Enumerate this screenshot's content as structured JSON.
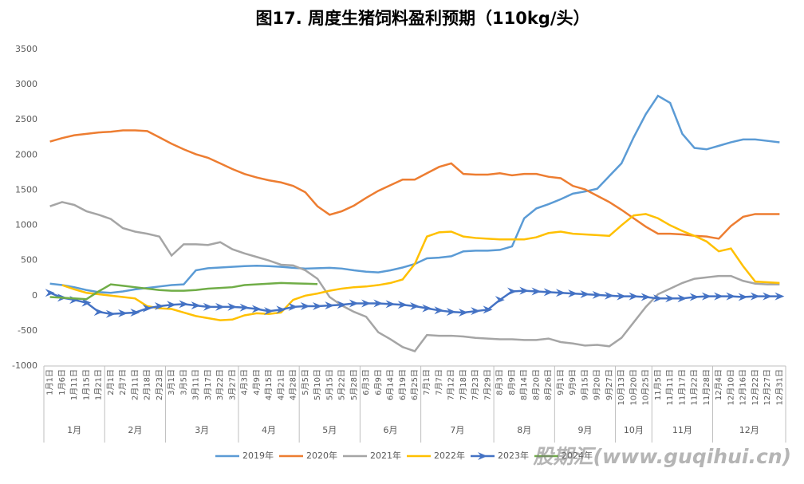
{
  "chart_data": {
    "type": "line",
    "title": "图17. 周度生猪饲料盈利预期（110kg/头）",
    "category_groups": [
      {
        "label": "1月",
        "categories": [
          "1月1日",
          "1月6日",
          "1月11日",
          "1月15日",
          "1月21日"
        ]
      },
      {
        "label": "2月",
        "categories": [
          "2月1日",
          "2月7日",
          "2月11日",
          "2月18日",
          "2月23日"
        ]
      },
      {
        "label": "3月",
        "categories": [
          "3月1日",
          "3月5日",
          "3月11日",
          "3月17日",
          "3月22日",
          "3月27日"
        ]
      },
      {
        "label": "4月",
        "categories": [
          "4月3日",
          "4月9日",
          "4月15日",
          "4月21日",
          "4月28日"
        ]
      },
      {
        "label": "5月",
        "categories": [
          "5月5日",
          "5月10日",
          "5月15日",
          "5月22日",
          "5月28日"
        ]
      },
      {
        "label": "6月",
        "categories": [
          "6月3日",
          "6月9日",
          "6月14日",
          "6月19日",
          "6月25日"
        ]
      },
      {
        "label": "7月",
        "categories": [
          "7月1日",
          "7月7日",
          "7月12日",
          "7月18日",
          "7月23日",
          "7月29日"
        ]
      },
      {
        "label": "8月",
        "categories": [
          "8月3日",
          "8月9日",
          "8月14日",
          "8月20日",
          "8月26日"
        ]
      },
      {
        "label": "9月",
        "categories": [
          "9月1日",
          "9月9日",
          "9月15日",
          "9月20日",
          "9月27日"
        ]
      },
      {
        "label": "10月",
        "categories": [
          "10月13日",
          "10月20日",
          "10月25日"
        ]
      },
      {
        "label": "11月",
        "categories": [
          "11月5日",
          "11月11日",
          "11月17日",
          "11月22日",
          "11月28日"
        ]
      },
      {
        "label": "12月",
        "categories": [
          "12月4日",
          "12月10日",
          "12月16日",
          "12月22日",
          "12月27日",
          "12月31日"
        ]
      }
    ],
    "series": [
      {
        "name": "2019年",
        "color": "#5b9bd5",
        "values": [
          170,
          150,
          120,
          80,
          50,
          40,
          60,
          90,
          110,
          130,
          150,
          160,
          360,
          390,
          400,
          410,
          420,
          425,
          420,
          410,
          395,
          385,
          390,
          395,
          385,
          360,
          340,
          330,
          360,
          400,
          450,
          530,
          540,
          560,
          630,
          640,
          640,
          650,
          700,
          1100,
          1240,
          1300,
          1370,
          1450,
          1480,
          1520,
          1700,
          1880,
          2250,
          2580,
          2840,
          2740,
          2300,
          2100,
          2080,
          2130,
          2180,
          2220,
          2220,
          2200,
          2180
        ]
      },
      {
        "name": "2020年",
        "color": "#ed7d31",
        "values": [
          2190,
          2240,
          2280,
          2300,
          2320,
          2330,
          2350,
          2350,
          2340,
          2250,
          2160,
          2080,
          2010,
          1960,
          1880,
          1800,
          1730,
          1680,
          1640,
          1610,
          1560,
          1470,
          1270,
          1150,
          1200,
          1280,
          1390,
          1490,
          1570,
          1650,
          1650,
          1740,
          1830,
          1880,
          1730,
          1720,
          1720,
          1740,
          1710,
          1730,
          1730,
          1690,
          1670,
          1560,
          1510,
          1420,
          1330,
          1220,
          1100,
          980,
          880,
          880,
          870,
          850,
          840,
          810,
          990,
          1120,
          1160,
          1160,
          1160
        ]
      },
      {
        "name": "2021年",
        "color": "#a5a5a5",
        "values": [
          1270,
          1330,
          1290,
          1200,
          1150,
          1090,
          960,
          910,
          880,
          840,
          570,
          730,
          730,
          720,
          760,
          660,
          600,
          550,
          500,
          440,
          430,
          360,
          240,
          -20,
          -140,
          -230,
          -300,
          -520,
          -620,
          -730,
          -790,
          -560,
          -570,
          -570,
          -580,
          -600,
          -610,
          -620,
          -620,
          -630,
          -630,
          -610,
          -660,
          -680,
          -710,
          -700,
          -720,
          -600,
          -380,
          -160,
          20,
          100,
          180,
          240,
          260,
          280,
          280,
          210,
          170,
          160,
          160
        ]
      },
      {
        "name": "2022年",
        "color": "#ffc000",
        "values": [
          null,
          150,
          90,
          40,
          20,
          0,
          -20,
          -40,
          -150,
          -180,
          -190,
          -240,
          -290,
          -320,
          -350,
          -340,
          -280,
          -250,
          -260,
          -240,
          -60,
          0,
          30,
          70,
          100,
          120,
          130,
          150,
          180,
          230,
          450,
          840,
          900,
          910,
          840,
          820,
          810,
          800,
          800,
          800,
          830,
          890,
          910,
          880,
          870,
          860,
          850,
          1000,
          1140,
          1160,
          1100,
          1000,
          920,
          850,
          770,
          630,
          670,
          420,
          200,
          190,
          180
        ]
      },
      {
        "name": "2023年",
        "color": "#4472c4",
        "marker": "arrow",
        "values": [
          40,
          -30,
          -60,
          -100,
          -230,
          -260,
          -250,
          -240,
          -180,
          -150,
          -130,
          -120,
          -140,
          -160,
          -160,
          -160,
          -170,
          -190,
          -220,
          -200,
          -160,
          -150,
          -150,
          -140,
          -130,
          -110,
          -110,
          -110,
          -120,
          -130,
          -150,
          -180,
          -210,
          -230,
          -240,
          -220,
          -200,
          -60,
          60,
          70,
          60,
          50,
          40,
          30,
          20,
          10,
          0,
          -10,
          -10,
          -20,
          -40,
          -40,
          -40,
          -20,
          -10,
          -10,
          -10,
          -20,
          -10,
          -10,
          -10
        ]
      },
      {
        "name": "2024年",
        "color": "#70ad47",
        "values": [
          -20,
          -30,
          -40,
          -50,
          60,
          160,
          140,
          120,
          100,
          80,
          70,
          70,
          80,
          100,
          110,
          120,
          150,
          160,
          170,
          180,
          175,
          170,
          165,
          null,
          null,
          null,
          null,
          null,
          null,
          null,
          null,
          null,
          null,
          null,
          null,
          null,
          null,
          null,
          null,
          null,
          null,
          null,
          null,
          null,
          null,
          null,
          null,
          null,
          null,
          null,
          null,
          null,
          null,
          null,
          null,
          null,
          null,
          null,
          null,
          null,
          null
        ]
      }
    ],
    "ylim": [
      -1000,
      3500
    ],
    "yticks": [
      -1000,
      -500,
      0,
      500,
      1000,
      1500,
      2000,
      2500,
      3000,
      3500
    ],
    "grid": false,
    "legend": "bottom",
    "watermark": "股期汇(www.guqihui.cn)"
  }
}
